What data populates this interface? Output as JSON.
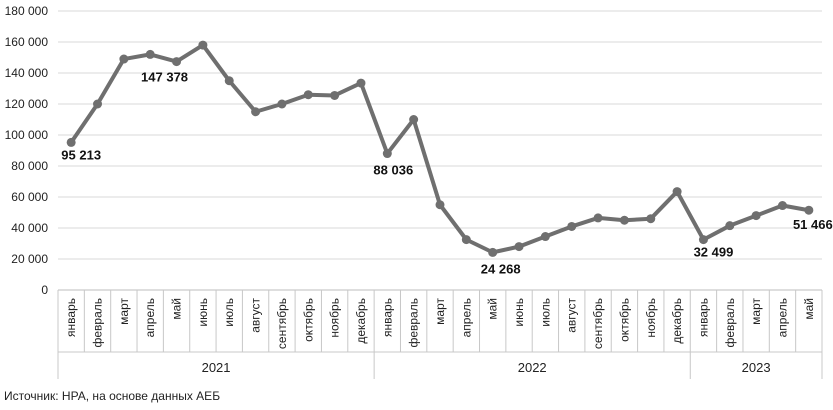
{
  "chart_data": {
    "type": "line",
    "ylim": [
      0,
      180000
    ],
    "y_ticks": [
      "0",
      "20 000",
      "40 000",
      "60 000",
      "80 000",
      "100 000",
      "120 000",
      "140 000",
      "160 000",
      "180 000"
    ],
    "grid": true,
    "categories": [
      "январь",
      "февраль",
      "март",
      "апрель",
      "май",
      "июнь",
      "июль",
      "август",
      "сентябрь",
      "октябрь",
      "ноябрь",
      "декабрь",
      "январь",
      "февраль",
      "март",
      "апрель",
      "май",
      "июнь",
      "июль",
      "август",
      "сентябрь",
      "октябрь",
      "ноябрь",
      "декабрь",
      "январь",
      "февраль",
      "март",
      "апрель",
      "май"
    ],
    "year_groups": [
      {
        "label": "2021",
        "count": 12
      },
      {
        "label": "2022",
        "count": 12
      },
      {
        "label": "2023",
        "count": 5
      }
    ],
    "series": [
      {
        "color": "#6f6f6f",
        "values": [
          95213,
          120000,
          149000,
          152000,
          147378,
          158000,
          135000,
          115000,
          120000,
          126000,
          125500,
          133500,
          88036,
          110000,
          55000,
          32500,
          24268,
          28000,
          34500,
          41000,
          46500,
          45000,
          46000,
          63500,
          32499,
          41500,
          48000,
          54500,
          51466
        ]
      }
    ],
    "data_labels": [
      {
        "index": 0,
        "text": "95 213"
      },
      {
        "index": 4,
        "text": "147 378"
      },
      {
        "index": 12,
        "text": "88 036"
      },
      {
        "index": 16,
        "text": "24 268"
      },
      {
        "index": 24,
        "text": "32 499"
      },
      {
        "index": 28,
        "text": "51 466"
      }
    ]
  },
  "source_text": "Источник: НРА, на основе данных АЕБ"
}
